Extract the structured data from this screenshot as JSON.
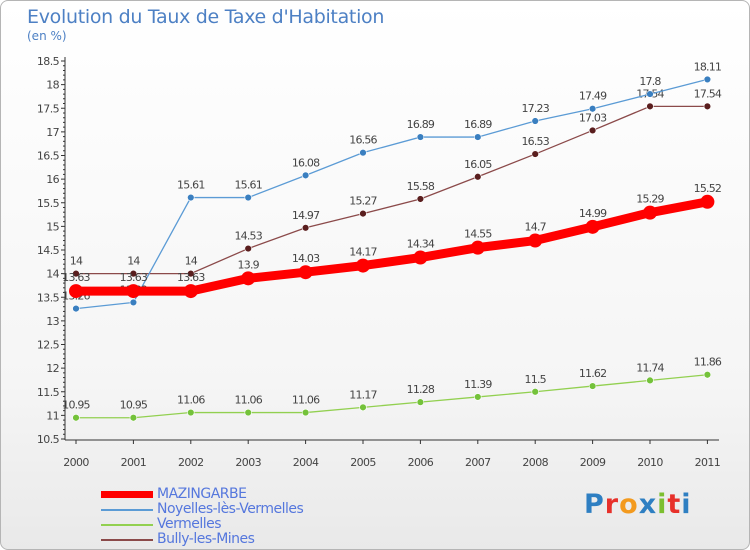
{
  "title": "Evolution du Taux de Taxe d'Habitation",
  "subtitle": "(en %)",
  "brand": {
    "text": "Proxiti",
    "letters": [
      {
        "ch": "P",
        "color": "#2e7fc2"
      },
      {
        "ch": "r",
        "color": "#e7302a"
      },
      {
        "ch": "o",
        "color": "#f39a1e"
      },
      {
        "ch": "x",
        "color": "#2e7fc2"
      },
      {
        "ch": "i",
        "color": "#7cbf2f"
      },
      {
        "ch": "t",
        "color": "#e7302a"
      },
      {
        "ch": "i",
        "color": "#2e7fc2"
      }
    ]
  },
  "chart_data": {
    "type": "line",
    "title": "Evolution du Taux de Taxe d'Habitation",
    "ylabel": "(en %)",
    "xlabel": "",
    "categories": [
      "2000",
      "2001",
      "2002",
      "2003",
      "2004",
      "2005",
      "2006",
      "2007",
      "2008",
      "2009",
      "2010",
      "2011"
    ],
    "ylim": [
      10.5,
      18.5
    ],
    "yticks": [
      "10.5",
      "11",
      "11.5",
      "12",
      "12.5",
      "13",
      "13.5",
      "14",
      "14.5",
      "15",
      "15.5",
      "16",
      "16.5",
      "17",
      "17.5",
      "18",
      "18.5"
    ],
    "grid": false,
    "legend_position": "bottom-left",
    "series": [
      {
        "name": "MAZINGARBE",
        "color": "#ff0000",
        "emphasis": true,
        "values": [
          13.63,
          13.63,
          13.63,
          13.9,
          14.03,
          14.17,
          14.34,
          14.55,
          14.7,
          14.99,
          15.29,
          15.52
        ],
        "labels": [
          "13.63",
          "13.63",
          "13.63",
          "13.9",
          "14.03",
          "14.17",
          "14.34",
          "14.55",
          "14.7",
          "14.99",
          "15.29",
          "15.52"
        ]
      },
      {
        "name": "Noyelles-lès-Vermelles",
        "color": "#5b9bd5",
        "marker": "#3a7fc0",
        "values": [
          13.26,
          13.39,
          15.61,
          15.61,
          16.08,
          16.56,
          16.89,
          16.89,
          17.23,
          17.49,
          17.8,
          18.11
        ],
        "labels": [
          "13.26",
          "13.39",
          "15.61",
          "15.61",
          "16.08",
          "16.56",
          "16.89",
          "16.89",
          "17.23",
          "17.49",
          "17.8",
          "18.11"
        ]
      },
      {
        "name": "Vermelles",
        "color": "#92d050",
        "marker": "#74c23a",
        "values": [
          10.95,
          10.95,
          11.06,
          11.06,
          11.06,
          11.17,
          11.28,
          11.39,
          11.5,
          11.62,
          11.74,
          11.86
        ],
        "labels": [
          "10.95",
          "10.95",
          "11.06",
          "11.06",
          "11.06",
          "11.17",
          "11.28",
          "11.39",
          "11.5",
          "11.62",
          "11.74",
          "11.86"
        ]
      },
      {
        "name": "Bully-les-Mines",
        "color": "#8b4a4a",
        "marker": "#5a1e1e",
        "values": [
          14,
          14,
          14,
          14.53,
          14.97,
          15.27,
          15.58,
          16.05,
          16.53,
          17.03,
          17.54,
          17.54
        ],
        "labels": [
          "14",
          "14",
          "14",
          "14.53",
          "14.97",
          "15.27",
          "15.58",
          "16.05",
          "16.53",
          "17.03",
          "17.54",
          "17.54"
        ]
      }
    ]
  }
}
